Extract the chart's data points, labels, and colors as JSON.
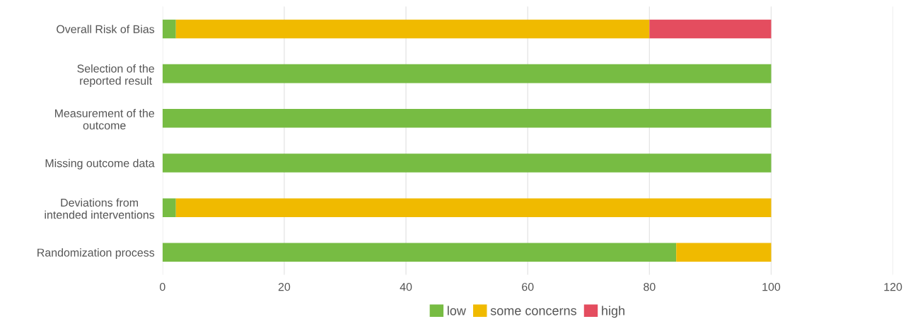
{
  "chart_data": {
    "type": "bar",
    "orientation": "horizontal",
    "stacked": true,
    "categories": [
      "Overall Risk of Bias",
      "Selection of the\nreported result",
      "Measurement of the\noutcome",
      "Missing outcome data",
      "Deviations from\nintended interventions",
      "Randomization process"
    ],
    "series": [
      {
        "name": "low",
        "color": "#77bc43",
        "values": [
          2.2,
          100,
          100,
          100,
          2.2,
          84.4
        ]
      },
      {
        "name": "some concerns",
        "color": "#f0ba00",
        "values": [
          77.8,
          0,
          0,
          0,
          97.8,
          15.6
        ]
      },
      {
        "name": "high",
        "color": "#e44d5f",
        "values": [
          20,
          0,
          0,
          0,
          0,
          0
        ]
      }
    ],
    "xlim": [
      0,
      120
    ],
    "xticks": [
      0,
      20,
      40,
      60,
      80,
      100,
      120
    ],
    "grid": "x",
    "legend": "bottom"
  }
}
